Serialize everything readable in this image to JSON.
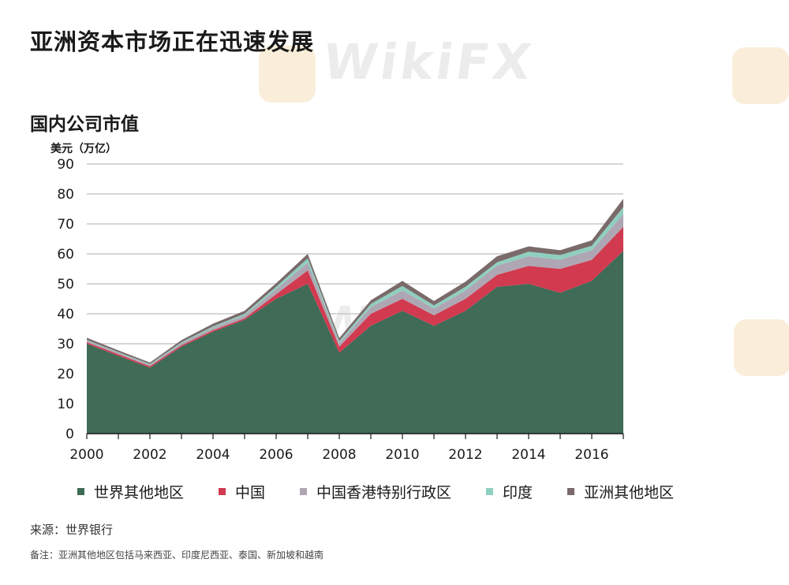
{
  "page_title": "亚洲资本市场正在迅速发展",
  "watermark_text": "WikiFX",
  "chart_data": {
    "type": "area",
    "stacked": true,
    "title": "国内公司市值",
    "ylabel": "美元（万亿）",
    "xlabel": "",
    "x": [
      2000,
      2001,
      2002,
      2003,
      2004,
      2005,
      2006,
      2007,
      2008,
      2009,
      2010,
      2011,
      2012,
      2013,
      2014,
      2015,
      2016,
      2017
    ],
    "xticks": [
      "2000",
      "2002",
      "2004",
      "2006",
      "2008",
      "2010",
      "2012",
      "2014",
      "2016"
    ],
    "yticks": [
      "0",
      "10",
      "20",
      "30",
      "40",
      "50",
      "60",
      "70",
      "80",
      "90"
    ],
    "ylim": [
      0,
      90
    ],
    "grid": true,
    "legend_position": "bottom",
    "series": [
      {
        "name": "世界其他地区",
        "color": "#3f6b57",
        "values": [
          30,
          26,
          22,
          29,
          34,
          38,
          45,
          50,
          27,
          36,
          41,
          36,
          41,
          49,
          50,
          47,
          51,
          61
        ]
      },
      {
        "name": "中国",
        "color": "#d23a50",
        "values": [
          0.5,
          0.5,
          0.5,
          0.5,
          0.5,
          0.5,
          1.5,
          4.5,
          2,
          4,
          4,
          3.5,
          4,
          4,
          6,
          8,
          7,
          8
        ]
      },
      {
        "name": "中国香港特别行政区",
        "color": "#aea7b3",
        "values": [
          0.6,
          0.5,
          0.5,
          0.7,
          0.9,
          1.0,
          1.7,
          2.6,
          1.3,
          2.2,
          2.8,
          2.3,
          2.8,
          3.1,
          3.2,
          3.1,
          3.2,
          4.3
        ]
      },
      {
        "name": "印度",
        "color": "#8fcfbf",
        "values": [
          0.2,
          0.2,
          0.2,
          0.3,
          0.4,
          0.5,
          0.8,
          1.4,
          0.6,
          1.1,
          1.5,
          1.0,
          1.2,
          1.1,
          1.5,
          1.5,
          1.5,
          2.3
        ]
      },
      {
        "name": "亚洲其他地区",
        "color": "#7a6a6a",
        "values": [
          0.7,
          0.6,
          0.5,
          0.7,
          0.9,
          1.0,
          1.2,
          1.5,
          1.0,
          1.2,
          1.7,
          1.5,
          1.7,
          2.0,
          1.8,
          1.6,
          1.8,
          2.8
        ]
      }
    ]
  },
  "source_text": "来源：世界银行",
  "note_text": "备注：亚洲其他地区包括马来西亚、印度尼西亚、泰国、新加坡和越南"
}
